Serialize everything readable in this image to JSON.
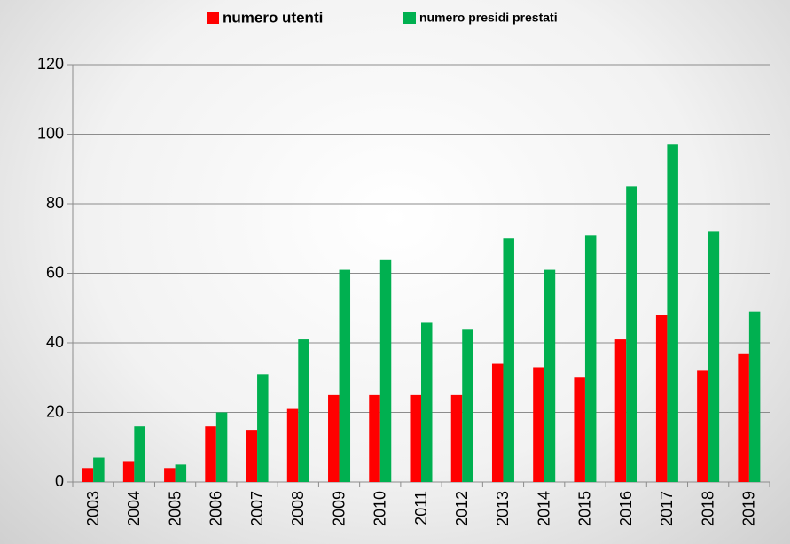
{
  "chart_data": {
    "type": "bar",
    "categories": [
      "2003",
      "2004",
      "2005",
      "2006",
      "2007",
      "2008",
      "2009",
      "2010",
      "2011",
      "2012",
      "2013",
      "2014",
      "2015",
      "2016",
      "2017",
      "2018",
      "2019"
    ],
    "series": [
      {
        "name": "numero utenti",
        "color": "#ff0000",
        "values": [
          4,
          6,
          4,
          16,
          15,
          21,
          25,
          25,
          25,
          25,
          34,
          33,
          30,
          41,
          48,
          32,
          37
        ]
      },
      {
        "name": "numero presidi prestati",
        "color": "#00b050",
        "values": [
          7,
          16,
          5,
          20,
          31,
          41,
          61,
          64,
          46,
          44,
          70,
          61,
          71,
          85,
          97,
          72,
          49
        ]
      }
    ],
    "ylim": [
      0,
      120
    ],
    "yticks": [
      0,
      20,
      40,
      60,
      80,
      100,
      120
    ],
    "grid": true,
    "legend": "top"
  }
}
